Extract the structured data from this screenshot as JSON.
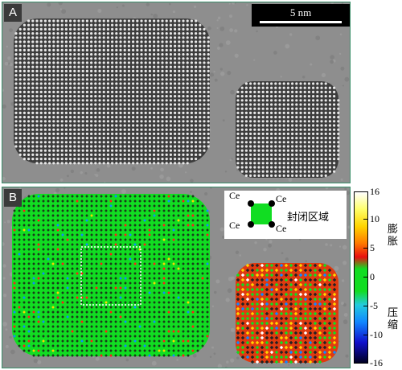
{
  "panel_a": {
    "label": "A",
    "scale_bar_text": "5 nm"
  },
  "panel_b": {
    "label": "B",
    "legend": {
      "atom_label": "Ce",
      "region_label": "封闭区域"
    },
    "colorbar": {
      "ticks": [
        "16",
        "10",
        "5",
        "0",
        "-5",
        "-10",
        "-16"
      ],
      "top_label": "膨胀",
      "bottom_label": "压缩",
      "colors": {
        "expansion": "#ff1a1a",
        "neutral": "#11dd22",
        "compression": "#1188ff"
      }
    }
  }
}
